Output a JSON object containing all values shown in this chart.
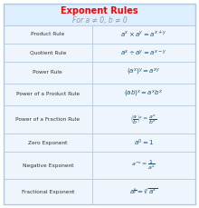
{
  "title": "Exponent Rules",
  "subtitle": "For a ≠ 0, b ≠ 0",
  "title_color": "#FF0000",
  "subtitle_color": "#999999",
  "header_bg": "#ddeeff",
  "row_bg_light": "#eef5fc",
  "border_color": "#b0c8e0",
  "outer_border": "#b0c8e0",
  "col_split": 0.46,
  "rows": [
    [
      "Product Rule",
      "$a^x \\times a^y = a^{x+y}$"
    ],
    [
      "Quotient Rule",
      "$a^x \\div a^y = a^{x-y}$"
    ],
    [
      "Power Rule",
      "$(a^x)^y = a^{xy}$"
    ],
    [
      "Power of a Product Rule",
      "$(ab)^x = a^x b^x$"
    ],
    [
      "Power of a Fraction Rule",
      "$\\left(\\dfrac{a}{b}\\right)^{\\!x} = \\dfrac{a^x}{b^x}$"
    ],
    [
      "Zero Exponent",
      "$a^0 = 1$"
    ],
    [
      "Negative Exponent",
      "$a^{-x} = \\dfrac{1}{a^x}$"
    ],
    [
      "Fractional Exponent",
      "$a^{\\frac{x}{y}} = \\sqrt[y]{a^x}$"
    ]
  ],
  "row_height_units": [
    1.0,
    1.0,
    1.2,
    1.2,
    1.6,
    1.0,
    1.5,
    1.4
  ],
  "figsize": [
    2.2,
    2.29
  ],
  "dpi": 100
}
